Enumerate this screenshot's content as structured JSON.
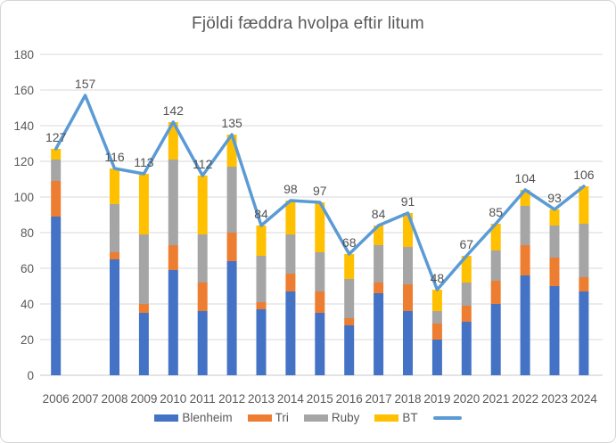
{
  "chart_data": {
    "type": "bar",
    "subtype": "stacked-bars-with-total-line",
    "title": "Fjöldi fæddra hvolpa eftir litum",
    "categories": [
      "2006",
      "2007",
      "2008",
      "2009",
      "2010",
      "2011",
      "2012",
      "2013",
      "2014",
      "2015",
      "2016",
      "2017",
      "2018",
      "2019",
      "2020",
      "2021",
      "2022",
      "2023",
      "2024"
    ],
    "series": [
      {
        "name": "Blenheim",
        "type": "bar",
        "color": "#4472C4",
        "values": [
          89,
          0,
          65,
          35,
          59,
          36,
          64,
          37,
          47,
          35,
          28,
          46,
          36,
          20,
          30,
          40,
          56,
          50,
          47
        ]
      },
      {
        "name": "Tri",
        "type": "bar",
        "color": "#ED7D31",
        "values": [
          20,
          0,
          4,
          5,
          14,
          16,
          16,
          4,
          10,
          12,
          4,
          6,
          15,
          9,
          9,
          13,
          17,
          16,
          8
        ]
      },
      {
        "name": "Ruby",
        "type": "bar",
        "color": "#A5A5A5",
        "values": [
          12,
          0,
          27,
          39,
          48,
          27,
          37,
          26,
          22,
          22,
          22,
          21,
          21,
          7,
          13,
          17,
          22,
          18,
          30
        ]
      },
      {
        "name": "BT",
        "type": "bar",
        "color": "#FFC000",
        "values": [
          6,
          0,
          20,
          34,
          21,
          33,
          18,
          17,
          19,
          28,
          14,
          11,
          19,
          12,
          15,
          15,
          9,
          9,
          21
        ]
      },
      {
        "name": "",
        "type": "line",
        "color": "#5B9BD5",
        "values": [
          127,
          157,
          116,
          113,
          142,
          112,
          135,
          84,
          98,
          97,
          68,
          84,
          91,
          48,
          67,
          85,
          104,
          93,
          106
        ]
      }
    ],
    "data_labels": [
      "127",
      "157",
      "116",
      "113",
      "142",
      "112",
      "135",
      "84",
      "98",
      "97",
      "68",
      "84",
      "91",
      "48",
      "67",
      "85",
      "104",
      "93",
      "106"
    ],
    "y_axis": {
      "min": 0,
      "max": 180,
      "step": 20,
      "tick_labels": [
        "0",
        "20",
        "40",
        "60",
        "80",
        "100",
        "120",
        "140",
        "160",
        "180"
      ]
    },
    "legend_position": "bottom",
    "grid": "horizontal",
    "colors": {
      "gridline": "#D9D9D9",
      "axis_line": "#C9C9C9",
      "axis_text": "#595959",
      "data_label_text": "#525252",
      "title_text": "#595959"
    }
  }
}
